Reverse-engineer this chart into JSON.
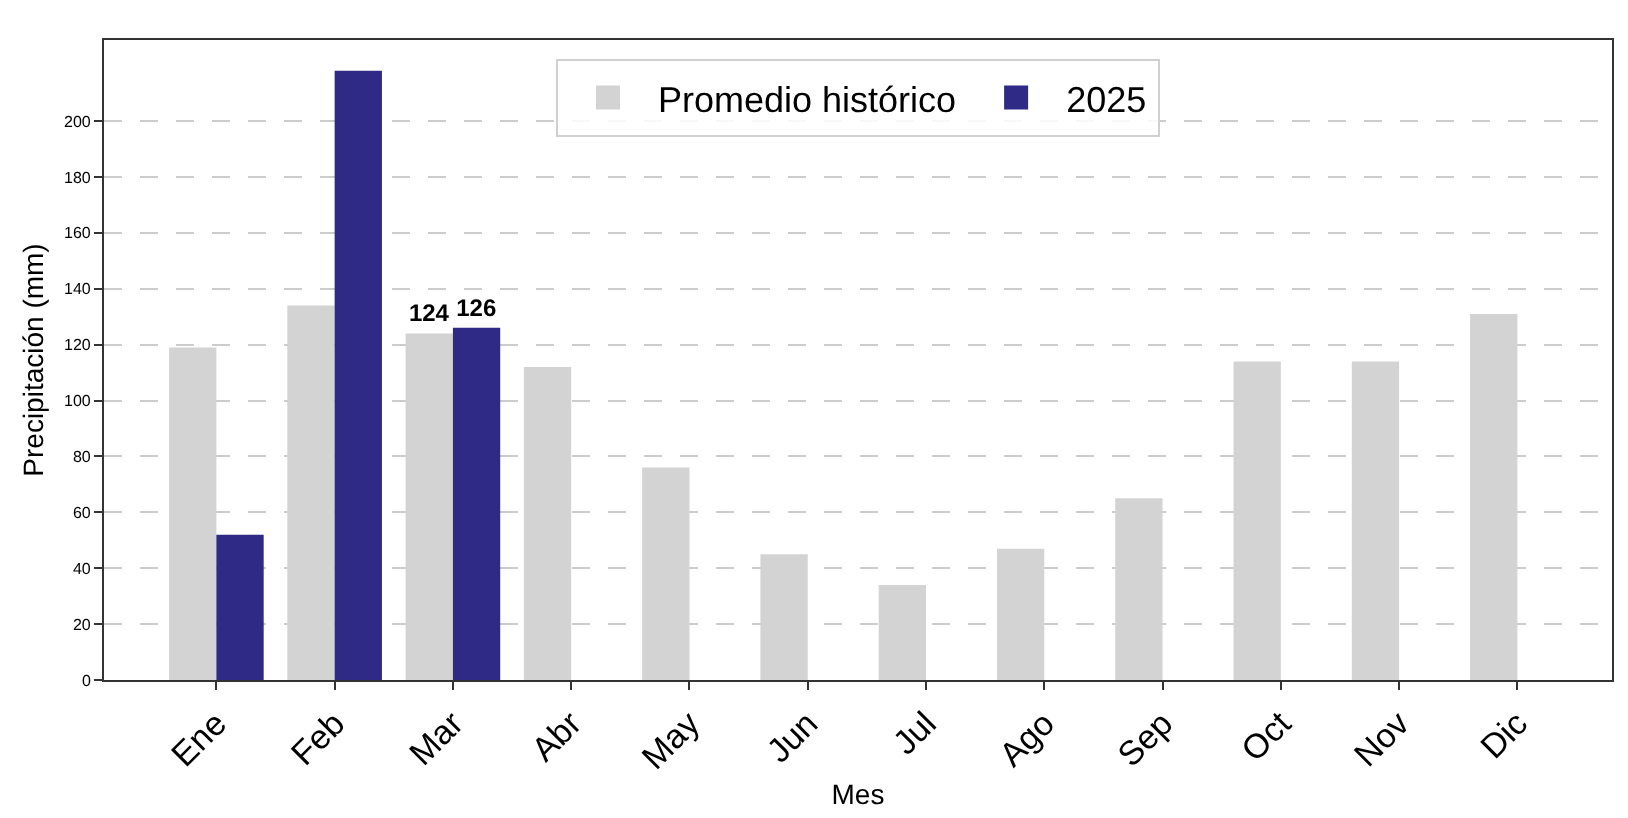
{
  "chart_data": {
    "type": "bar",
    "xlabel": "Mes",
    "ylabel": "Precipitación (mm)",
    "categories": [
      "Ene",
      "Feb",
      "Mar",
      "Abr",
      "May",
      "Jun",
      "Jul",
      "Ago",
      "Sep",
      "Oct",
      "Nov",
      "Dic"
    ],
    "series": [
      {
        "name": "Promedio histórico",
        "color": "#d3d3d3",
        "values": [
          119,
          134,
          124,
          112,
          76,
          45,
          34,
          47,
          65,
          114,
          114,
          131
        ],
        "value_labels": [
          null,
          null,
          "124",
          null,
          null,
          null,
          null,
          null,
          null,
          null,
          null,
          null
        ]
      },
      {
        "name": "2025",
        "color": "#2e2a85",
        "values": [
          52,
          218,
          126,
          null,
          null,
          null,
          null,
          null,
          null,
          null,
          null,
          null
        ],
        "value_labels": [
          null,
          null,
          "126",
          null,
          null,
          null,
          null,
          null,
          null,
          null,
          null,
          null
        ]
      }
    ],
    "ylim": [
      0,
      229
    ],
    "yticks": [
      0,
      20,
      40,
      60,
      80,
      100,
      120,
      140,
      160,
      180,
      200
    ],
    "grid": "y",
    "legend": "top"
  }
}
